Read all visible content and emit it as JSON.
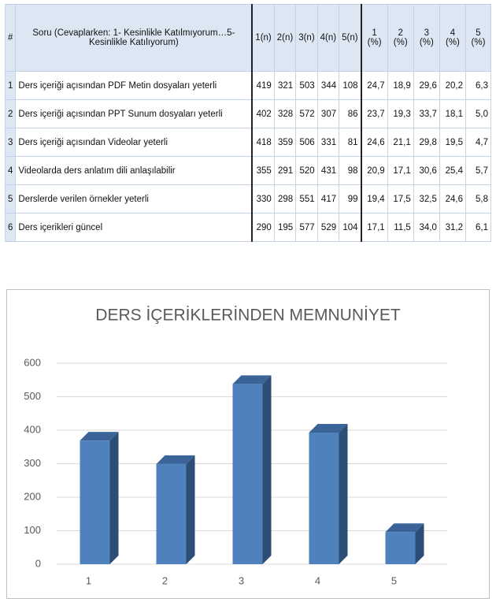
{
  "table": {
    "header": [
      "#",
      "Soru (Cevaplarken: 1- Kesinlikle Katılmıyorum…5-Kesinlikle Katılıyorum)",
      "1(n)",
      "2(n)",
      "3(n)",
      "4(n)",
      "5(n)",
      "1 (%)",
      "2 (%)",
      "3 (%)",
      "4 (%)",
      "5 (%)"
    ],
    "rows": [
      [
        "1",
        "Ders içeriği açısından PDF Metin dosyaları yeterli",
        "419",
        "321",
        "503",
        "344",
        "108",
        "24,7",
        "18,9",
        "29,6",
        "20,2",
        "6,3"
      ],
      [
        "2",
        "Ders içeriği açısından PPT Sunum dosyaları yeterli",
        "402",
        "328",
        "572",
        "307",
        "86",
        "23,7",
        "19,3",
        "33,7",
        "18,1",
        "5,0"
      ],
      [
        "3",
        "Ders içeriği açısından Videolar yeterli",
        "418",
        "359",
        "506",
        "331",
        "81",
        "24,6",
        "21,1",
        "29,8",
        "19,5",
        "4,7"
      ],
      [
        "4",
        "Videolarda ders anlatım dili anlaşılabilir",
        "355",
        "291",
        "520",
        "431",
        "98",
        "20,9",
        "17,1",
        "30,6",
        "25,4",
        "5,7"
      ],
      [
        "5",
        "Derslerde verilen örnekler yeterli",
        "330",
        "298",
        "551",
        "417",
        "99",
        "19,4",
        "17,5",
        "32,5",
        "24,6",
        "5,8"
      ],
      [
        "6",
        "Ders içerikleri güncel",
        "290",
        "195",
        "577",
        "529",
        "104",
        "17,1",
        "11,5",
        "34,0",
        "31,2",
        "6,1"
      ]
    ]
  },
  "chart_data": {
    "type": "bar",
    "title": "DERS İÇERİKLERİNDEN MEMNUNİYET",
    "categories": [
      "1",
      "2",
      "3",
      "4",
      "5"
    ],
    "values": [
      369,
      299,
      538,
      393,
      96
    ],
    "color": "#4f81bd",
    "ylim": [
      0,
      600
    ],
    "yticks": [
      0,
      100,
      200,
      300,
      400,
      500,
      600
    ],
    "grid": true
  }
}
